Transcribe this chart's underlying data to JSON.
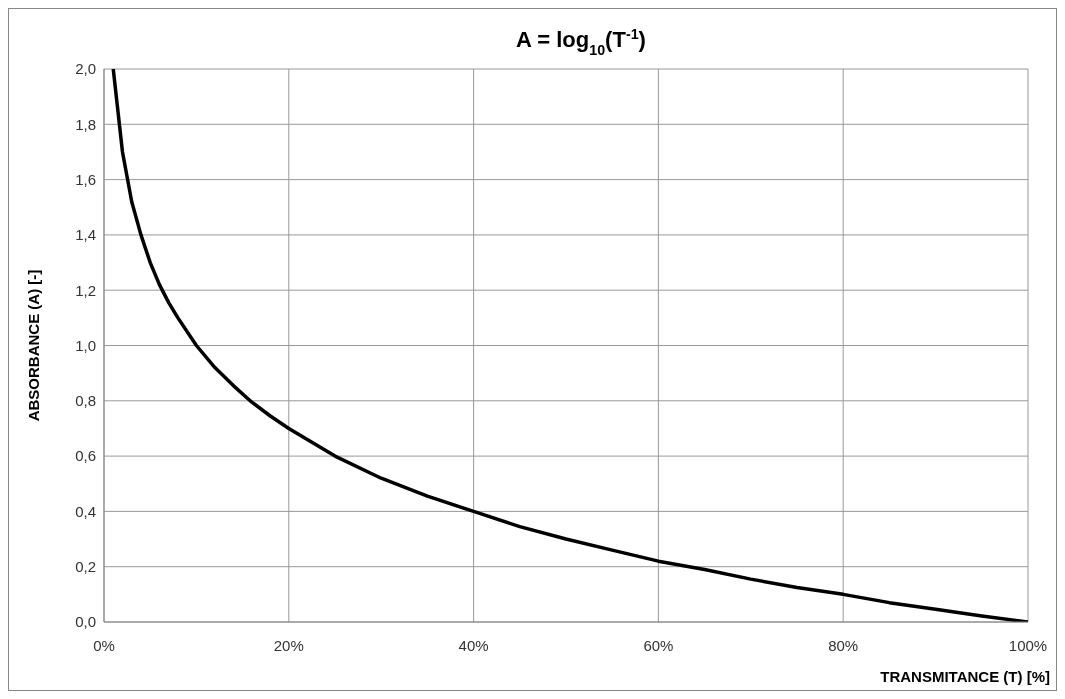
{
  "chart_data": {
    "type": "line",
    "title": "A = log$_{10}$(T$^{-1}$)",
    "xlabel": "TRANSMITANCE (T) [%]",
    "ylabel": "ABSORBANCE (A) [-]",
    "x": [
      1,
      2,
      3,
      4,
      5,
      6,
      7,
      8,
      10,
      12,
      14,
      16,
      18,
      20,
      25,
      30,
      35,
      40,
      45,
      50,
      55,
      60,
      65,
      70,
      75,
      80,
      85,
      90,
      95,
      100
    ],
    "series": [
      {
        "color": "#000000",
        "values": [
          2.0,
          1.7,
          1.52,
          1.4,
          1.3,
          1.22,
          1.155,
          1.1,
          1.0,
          0.92,
          0.855,
          0.795,
          0.745,
          0.7,
          0.6,
          0.52,
          0.455,
          0.4,
          0.345,
          0.3,
          0.26,
          0.22,
          0.19,
          0.155,
          0.125,
          0.1,
          0.07,
          0.046,
          0.022,
          0.0
        ]
      }
    ],
    "xlim": [
      0,
      100
    ],
    "xticks": [
      {
        "value": 0,
        "label": "0%"
      },
      {
        "value": 20,
        "label": "20%"
      },
      {
        "value": 40,
        "label": "40%"
      },
      {
        "value": 60,
        "label": "60%"
      },
      {
        "value": 80,
        "label": "80%"
      },
      {
        "value": 100,
        "label": "100%"
      }
    ],
    "ylim": [
      0,
      2
    ],
    "yticks": [
      {
        "value": 0,
        "label": "0,0"
      },
      {
        "value": 0.2,
        "label": "0,2"
      },
      {
        "value": 0.4,
        "label": "0,4"
      },
      {
        "value": 0.6,
        "label": "0,6"
      },
      {
        "value": 0.8,
        "label": "0,8"
      },
      {
        "value": 1.0,
        "label": "1,0"
      },
      {
        "value": 1.2,
        "label": "1,2"
      },
      {
        "value": 1.4,
        "label": "1,4"
      },
      {
        "value": 1.6,
        "label": "1,6"
      },
      {
        "value": 1.8,
        "label": "1,8"
      },
      {
        "value": 2.0,
        "label": "2,0"
      }
    ],
    "grid": true,
    "marker": "none",
    "line_style": "solid"
  }
}
